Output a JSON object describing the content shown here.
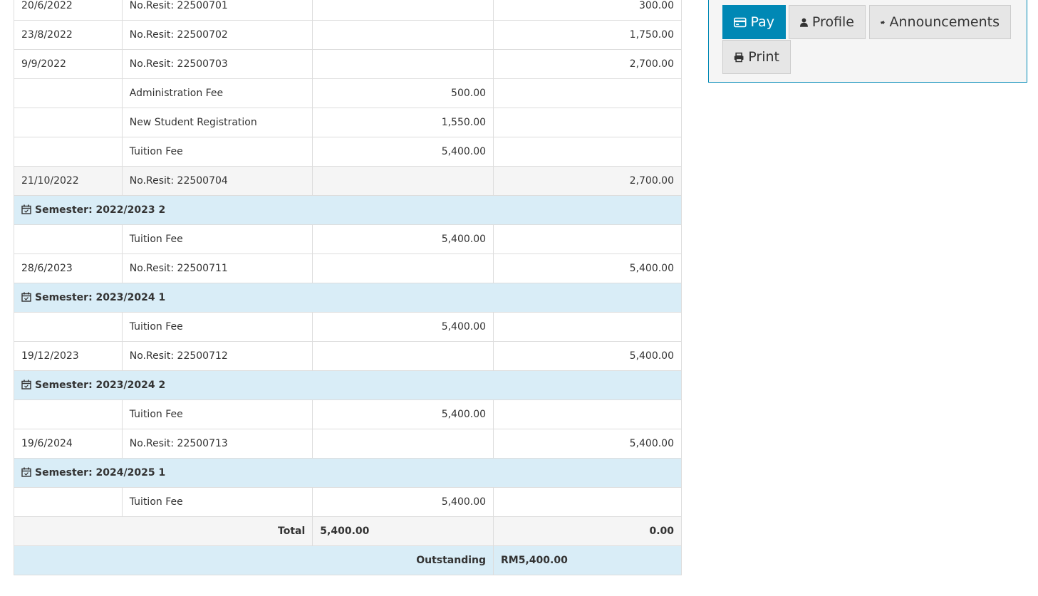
{
  "rows": [
    {
      "type": "normal",
      "date": "20/6/2022",
      "desc": "No.Resit: 22500701",
      "debit": "",
      "credit": "300.00"
    },
    {
      "type": "normal",
      "date": "23/8/2022",
      "desc": "No.Resit: 22500702",
      "debit": "",
      "credit": "1,750.00"
    },
    {
      "type": "normal",
      "date": "9/9/2022",
      "desc": "No.Resit: 22500703",
      "debit": "",
      "credit": "2,700.00"
    },
    {
      "type": "normal",
      "date": "",
      "desc": "Administration Fee",
      "debit": "500.00",
      "credit": ""
    },
    {
      "type": "normal",
      "date": "",
      "desc": "New Student Registration",
      "debit": "1,550.00",
      "credit": ""
    },
    {
      "type": "normal",
      "date": "",
      "desc": "Tuition Fee",
      "debit": "5,400.00",
      "credit": ""
    },
    {
      "type": "shade",
      "date": "21/10/2022",
      "desc": "No.Resit: 22500704",
      "debit": "",
      "credit": "2,700.00"
    },
    {
      "type": "sem",
      "label": "Semester: 2022/2023 2"
    },
    {
      "type": "normal",
      "date": "",
      "desc": "Tuition Fee",
      "debit": "5,400.00",
      "credit": ""
    },
    {
      "type": "normal",
      "date": "28/6/2023",
      "desc": "No.Resit: 22500711",
      "debit": "",
      "credit": "5,400.00"
    },
    {
      "type": "sem",
      "label": "Semester: 2023/2024 1"
    },
    {
      "type": "normal",
      "date": "",
      "desc": "Tuition Fee",
      "debit": "5,400.00",
      "credit": ""
    },
    {
      "type": "normal",
      "date": "19/12/2023",
      "desc": "No.Resit: 22500712",
      "debit": "",
      "credit": "5,400.00"
    },
    {
      "type": "sem",
      "label": "Semester: 2023/2024 2"
    },
    {
      "type": "normal",
      "date": "",
      "desc": "Tuition Fee",
      "debit": "5,400.00",
      "credit": ""
    },
    {
      "type": "normal",
      "date": "19/6/2024",
      "desc": "No.Resit: 22500713",
      "debit": "",
      "credit": "5,400.00"
    },
    {
      "type": "sem",
      "label": "Semester: 2024/2025 1"
    },
    {
      "type": "normal",
      "date": "",
      "desc": "Tuition Fee",
      "debit": "5,400.00",
      "credit": ""
    }
  ],
  "total": {
    "label": "Total",
    "debit": "5,400.00",
    "credit": "0.00"
  },
  "outstanding": {
    "label": "Outstanding",
    "amount": "RM5,400.00"
  },
  "actions": {
    "pay": "Pay",
    "profile": "Profile",
    "announcements": "Announcements",
    "print": "Print"
  },
  "colors": {
    "primary": "#0088b5",
    "semester_row": "#d9edf7"
  }
}
